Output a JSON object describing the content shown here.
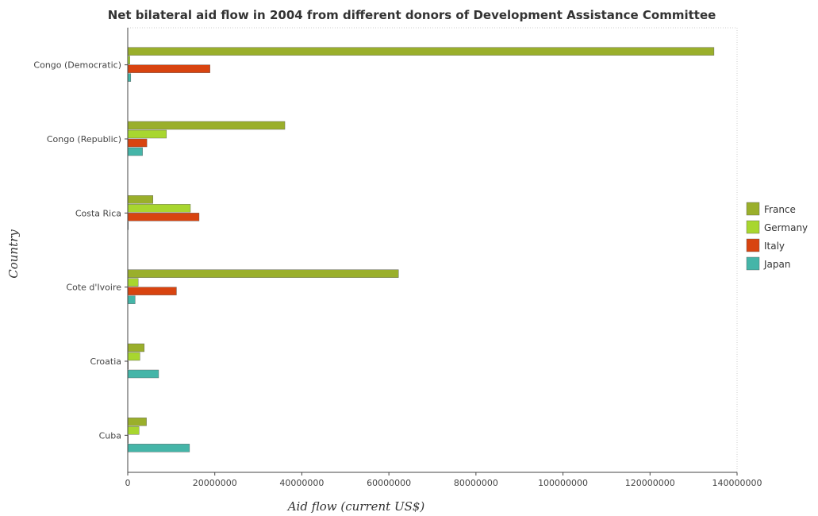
{
  "chart_data": {
    "type": "bar",
    "orientation": "horizontal",
    "title": "Net bilateral aid flow in 2004 from different donors of Development Assistance Committee",
    "xlabel": "Aid flow (current US$)",
    "ylabel": "Country",
    "categories": [
      "Congo (Democratic)",
      "Congo (Republic)",
      "Costa Rica",
      "Cote d'Ivoire",
      "Croatia",
      "Cuba"
    ],
    "xlim": [
      0,
      140000000
    ],
    "xticks": [
      0,
      20000000,
      40000000,
      60000000,
      80000000,
      100000000,
      120000000,
      140000000
    ],
    "xtick_labels": [
      "0",
      "20000000",
      "40000000",
      "60000000",
      "80000000",
      "100000000",
      "120000000",
      "140000000"
    ],
    "series": [
      {
        "name": "France",
        "color": "#9aaf2b",
        "values": [
          134700000,
          36100000,
          5800000,
          62200000,
          3800000,
          4300000
        ]
      },
      {
        "name": "Germany",
        "color": "#a8d62f",
        "values": [
          500000,
          8900000,
          14400000,
          2400000,
          2800000,
          2600000
        ]
      },
      {
        "name": "Italy",
        "color": "#d84410",
        "values": [
          18900000,
          4400000,
          16400000,
          11200000,
          100000,
          50000
        ]
      },
      {
        "name": "Japan",
        "color": "#45b5a8",
        "values": [
          700000,
          3400000,
          50000,
          1700000,
          7100000,
          14200000
        ]
      }
    ],
    "legend_position": "right",
    "grid": false
  }
}
